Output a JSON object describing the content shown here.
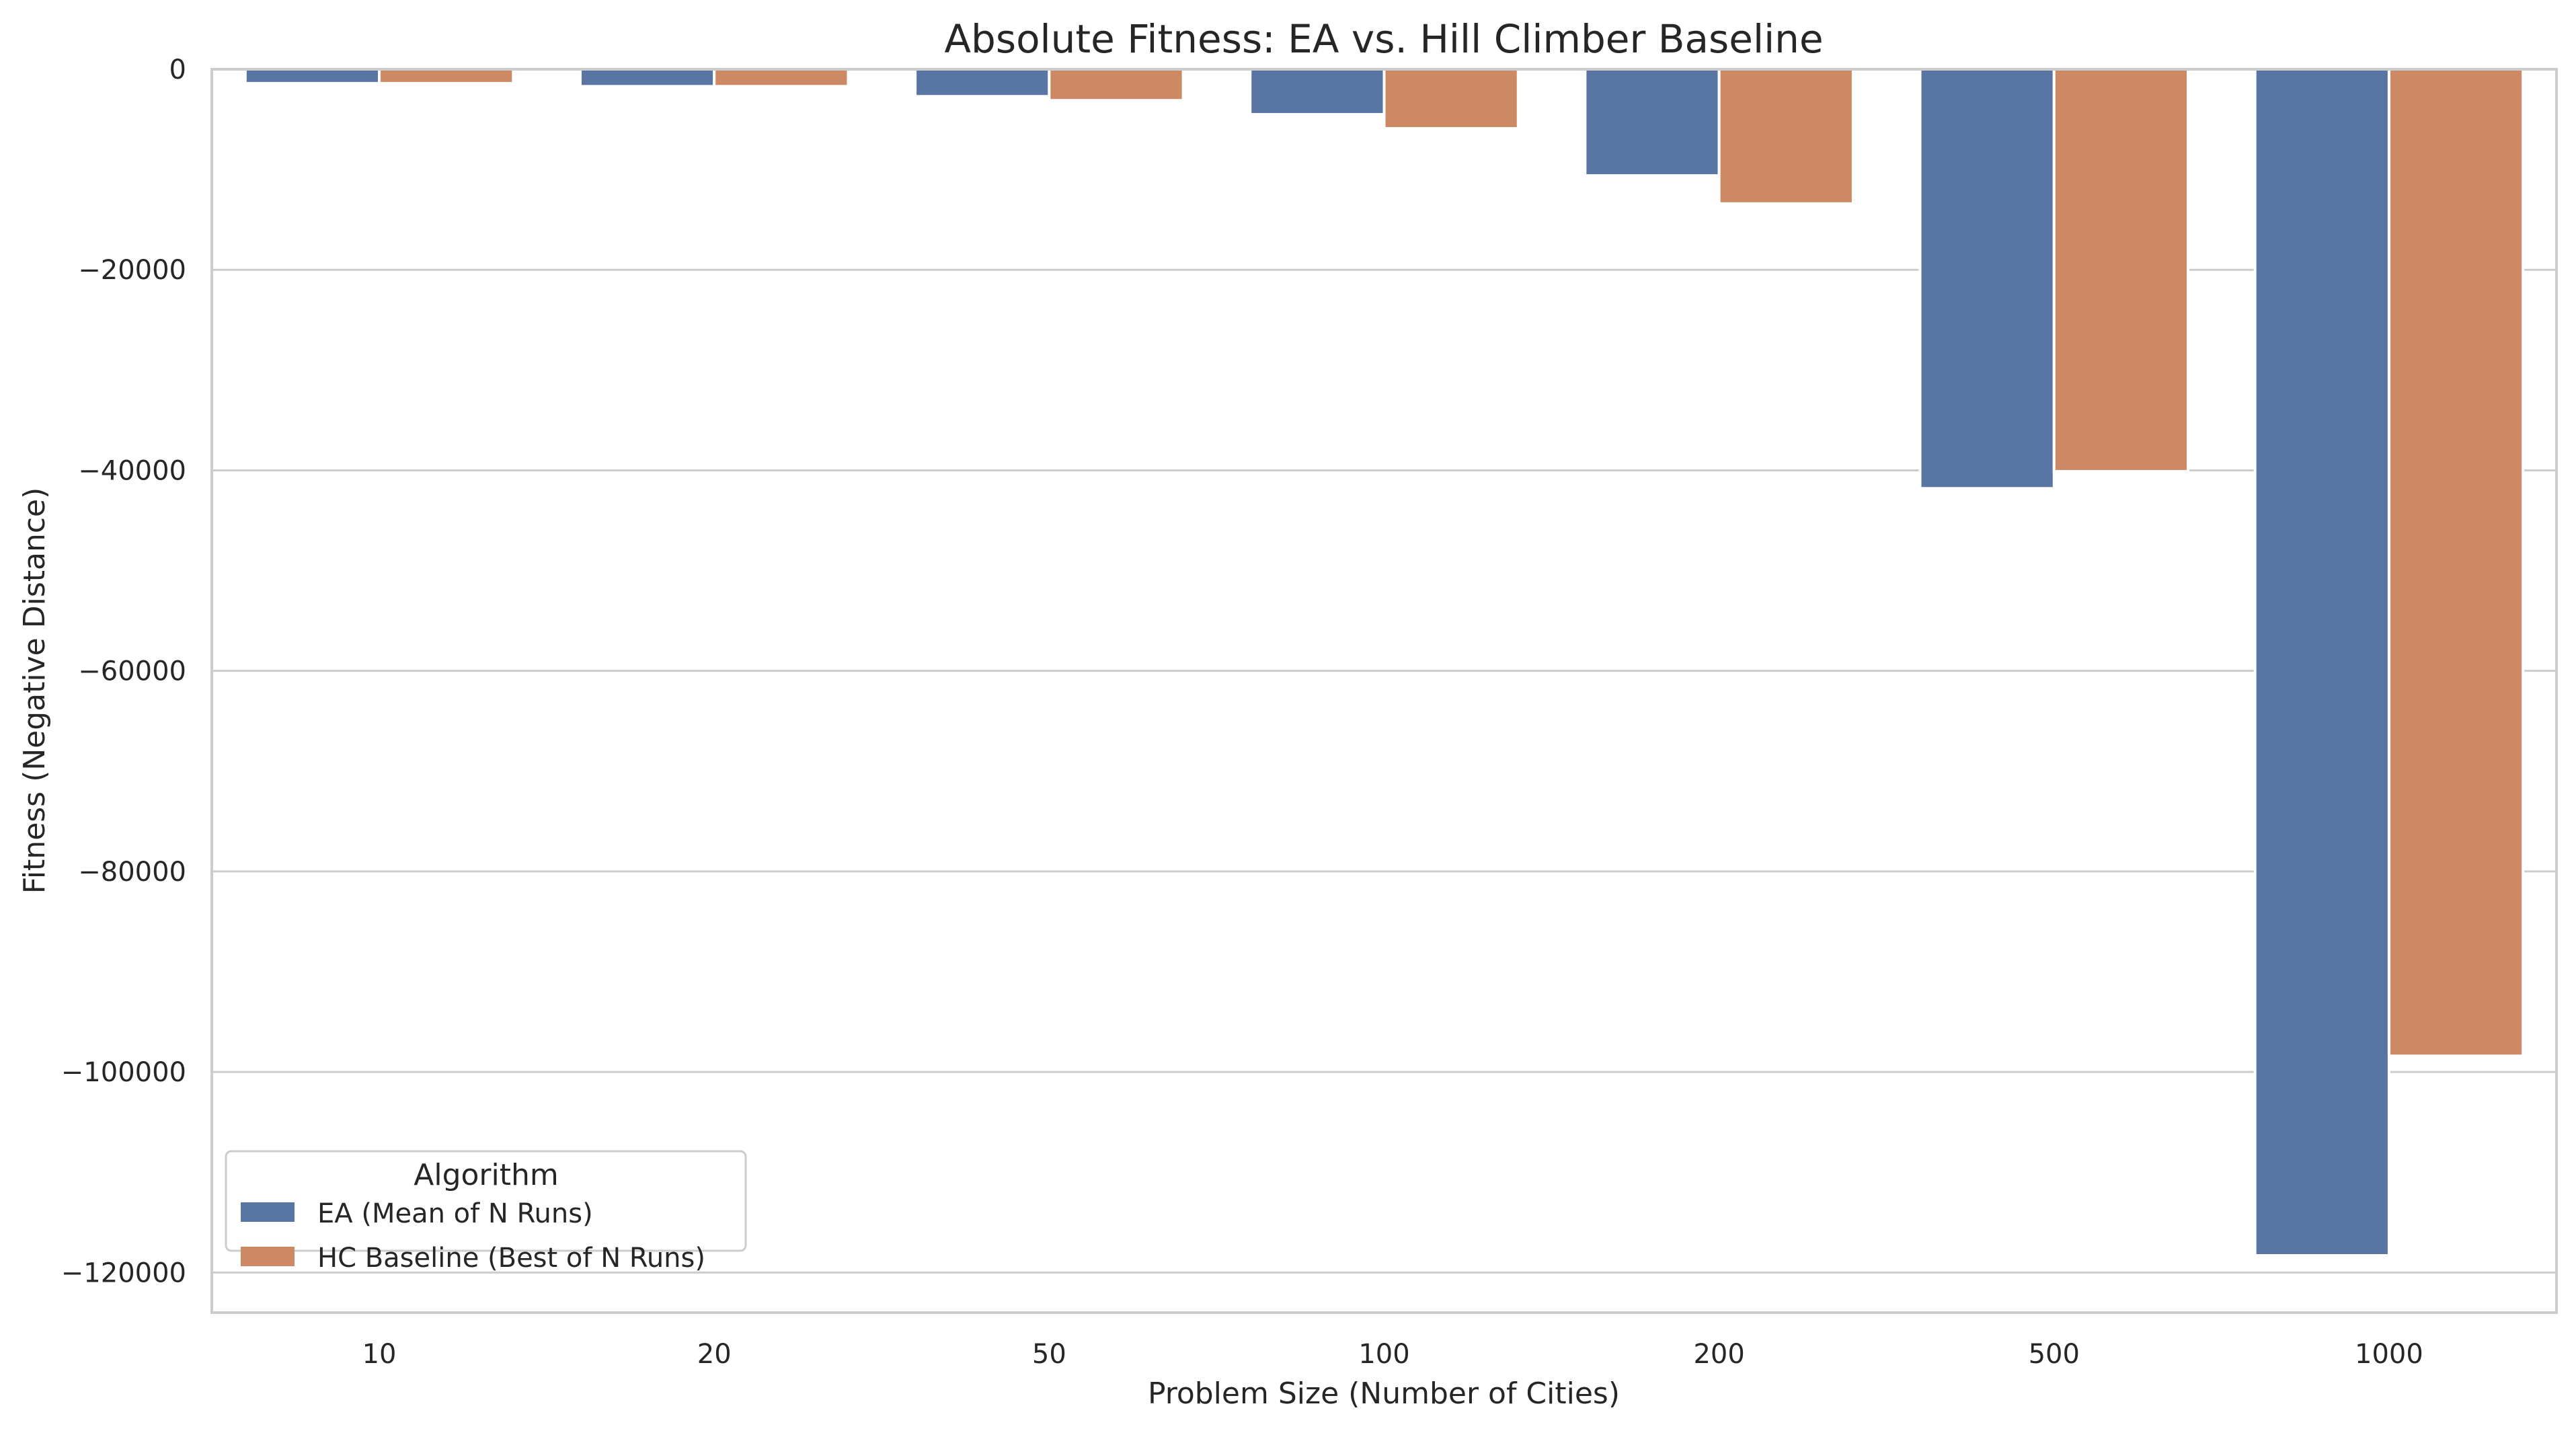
{
  "chart_data": {
    "type": "bar",
    "title": "Absolute Fitness: EA vs. Hill Climber Baseline",
    "xlabel": "Problem Size (Number of Cities)",
    "ylabel": "Fitness (Negative Distance)",
    "categories": [
      "10",
      "20",
      "50",
      "100",
      "200",
      "500",
      "1000"
    ],
    "series": [
      {
        "name": "EA (Mean of N Runs)",
        "color": "#5975a4",
        "values": [
          -1400,
          -1700,
          -2700,
          -4500,
          -10600,
          -41800,
          -118300
        ]
      },
      {
        "name": "HC Baseline (Best of N Runs)",
        "color": "#cc8963",
        "values": [
          -1400,
          -1700,
          -3100,
          -5900,
          -13400,
          -40100,
          -98400
        ]
      }
    ],
    "ylim": [
      -124000,
      0
    ],
    "yticks": [
      0,
      -20000,
      -40000,
      -60000,
      -80000,
      -100000,
      -120000
    ],
    "ytick_labels": [
      "0",
      "−20000",
      "−40000",
      "−60000",
      "−80000",
      "−100000",
      "−120000"
    ],
    "grid": true,
    "legend": {
      "title": "Algorithm",
      "placement": "lower-left"
    }
  }
}
